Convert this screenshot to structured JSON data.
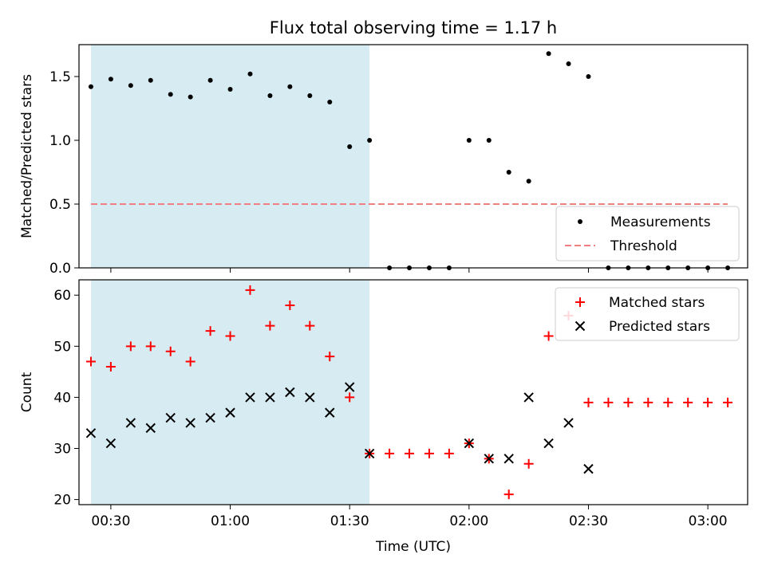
{
  "chart_data": [
    {
      "type": "scatter",
      "title": "Flux total observing time = 1.17 h",
      "xlabel": "",
      "ylabel": "Matched/Predicted stars",
      "xlim": [
        "00:22",
        "03:10"
      ],
      "ylim": [
        0,
        1.75
      ],
      "yticks": [
        "0.0",
        "0.5",
        "1.0",
        "1.5"
      ],
      "shaded_interval": [
        "00:25",
        "01:35"
      ],
      "threshold": {
        "name": "Threshold",
        "value": 0.5,
        "x_range": [
          "00:25",
          "03:05"
        ],
        "color": "#f08080"
      },
      "series": [
        {
          "name": "Measurements",
          "color": "#000000",
          "x": [
            "00:25",
            "00:30",
            "00:35",
            "00:40",
            "00:45",
            "00:50",
            "00:55",
            "01:00",
            "01:05",
            "01:10",
            "01:15",
            "01:20",
            "01:25",
            "01:30",
            "01:35",
            "01:40",
            "01:45",
            "01:50",
            "01:55",
            "02:00",
            "02:05",
            "02:10",
            "02:15",
            "02:20",
            "02:25",
            "02:30",
            "02:35",
            "02:40",
            "02:45",
            "02:50",
            "02:55",
            "03:00",
            "03:05"
          ],
          "values": [
            1.42,
            1.48,
            1.43,
            1.47,
            1.36,
            1.34,
            1.47,
            1.4,
            1.52,
            1.35,
            1.42,
            1.35,
            1.3,
            0.95,
            1.0,
            0,
            0,
            0,
            0,
            1.0,
            1.0,
            0.75,
            0.68,
            1.68,
            1.6,
            1.5,
            0,
            0,
            0,
            0,
            0,
            0,
            0
          ]
        }
      ],
      "legend": {
        "position": "bottom-right",
        "entries": [
          "Measurements",
          "Threshold"
        ]
      }
    },
    {
      "type": "scatter",
      "title": "",
      "xlabel": "Time (UTC)",
      "ylabel": "Count",
      "xlim": [
        "00:22",
        "03:10"
      ],
      "ylim": [
        19,
        63
      ],
      "xticks": [
        "00:30",
        "01:00",
        "01:30",
        "02:00",
        "02:30",
        "03:00"
      ],
      "yticks": [
        "20",
        "30",
        "40",
        "50",
        "60"
      ],
      "shaded_interval": [
        "00:25",
        "01:35"
      ],
      "series": [
        {
          "name": "Matched stars",
          "marker": "plus",
          "color": "#ff0000",
          "x": [
            "00:25",
            "00:30",
            "00:35",
            "00:40",
            "00:45",
            "00:50",
            "00:55",
            "01:00",
            "01:05",
            "01:10",
            "01:15",
            "01:20",
            "01:25",
            "01:30",
            "01:35",
            "01:40",
            "01:45",
            "01:50",
            "01:55",
            "02:00",
            "02:05",
            "02:10",
            "02:15",
            "02:20",
            "02:25",
            "02:30",
            "02:35",
            "02:40",
            "02:45",
            "02:50",
            "02:55",
            "03:00",
            "03:05"
          ],
          "values": [
            47,
            46,
            50,
            50,
            49,
            47,
            53,
            52,
            61,
            54,
            58,
            54,
            48,
            40,
            29,
            29,
            29,
            29,
            29,
            31,
            28,
            21,
            27,
            52,
            56,
            39,
            39,
            39,
            39,
            39,
            39,
            39,
            39
          ]
        },
        {
          "name": "Predicted stars",
          "marker": "x",
          "color": "#000000",
          "x": [
            "00:25",
            "00:30",
            "00:35",
            "00:40",
            "00:45",
            "00:50",
            "00:55",
            "01:00",
            "01:05",
            "01:10",
            "01:15",
            "01:20",
            "01:25",
            "01:30",
            "01:35",
            "02:00",
            "02:05",
            "02:10",
            "02:15",
            "02:20",
            "02:25",
            "02:30"
          ],
          "values": [
            33,
            31,
            35,
            34,
            36,
            35,
            36,
            37,
            40,
            40,
            41,
            40,
            37,
            42,
            29,
            31,
            28,
            28,
            40,
            31,
            35,
            26
          ]
        }
      ],
      "legend": {
        "position": "top-right",
        "entries": [
          "Matched stars",
          "Predicted stars"
        ]
      }
    }
  ]
}
